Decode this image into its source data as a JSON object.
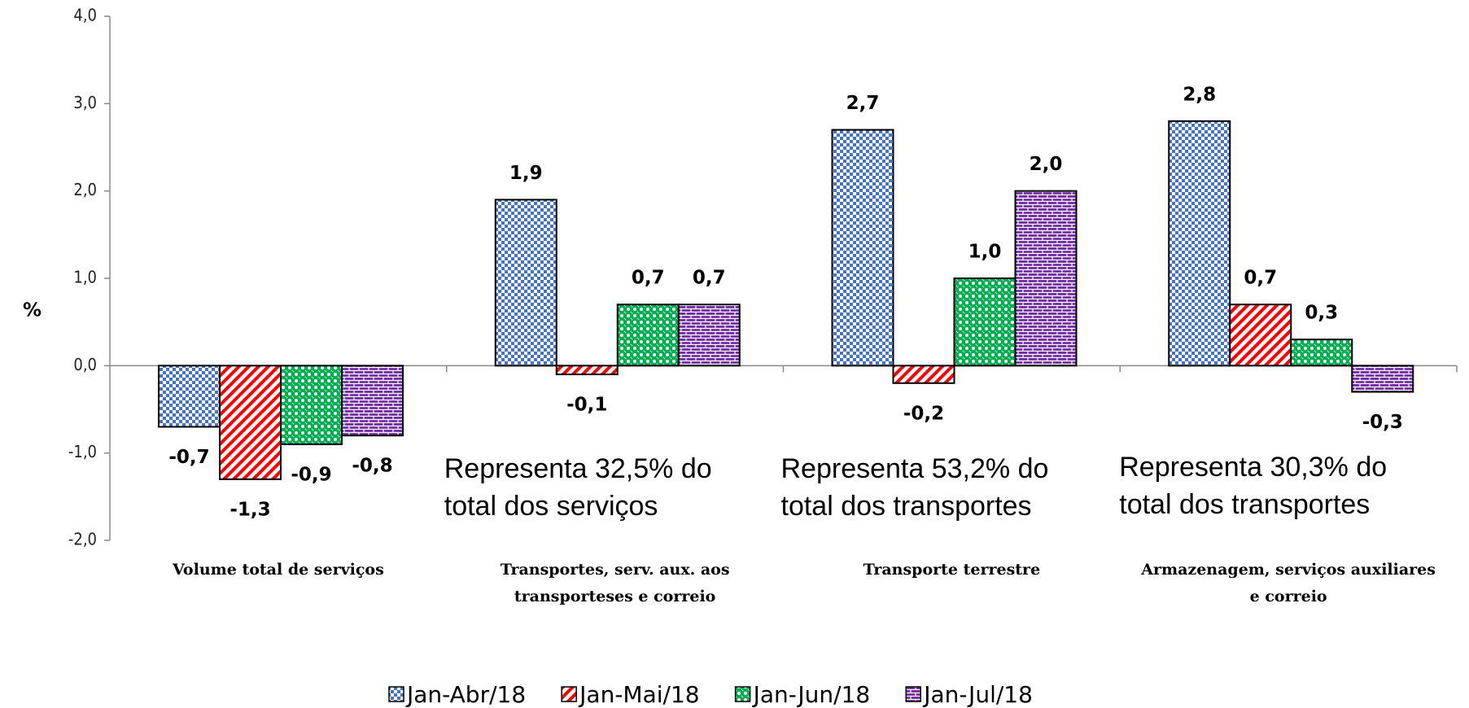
{
  "chart_data": {
    "type": "bar",
    "y_label": "%",
    "categories": [
      "Volume total de serviços",
      "Transportes, serv. aux. aos transporteses e correio",
      "Transporte terrestre",
      "Armazenagem, serviços auxiliares e correio"
    ],
    "series": [
      {
        "name": "Jan-Abr/18",
        "color": "#4472c4",
        "values": [
          -0.7,
          1.9,
          2.7,
          2.8
        ],
        "value_labels": [
          "-0,7",
          "1,9",
          "2,7",
          "2,8"
        ]
      },
      {
        "name": "Jan-Mai/18",
        "color": "#ff0000",
        "values": [
          -1.3,
          -0.1,
          -0.2,
          0.7
        ],
        "value_labels": [
          "-1,3",
          "-0,1",
          "-0,2",
          "0,7"
        ]
      },
      {
        "name": "Jan-Jun/18",
        "color": "#00b050",
        "values": [
          -0.9,
          0.7,
          1.0,
          0.3
        ],
        "value_labels": [
          "-0,9",
          "0,7",
          "1,0",
          "0,3"
        ]
      },
      {
        "name": "Jan-Jul/18",
        "color": "#7030a0",
        "values": [
          -0.8,
          0.7,
          2.0,
          -0.3
        ],
        "value_labels": [
          "-0,8",
          "0,7",
          "2,0",
          "-0,3"
        ]
      }
    ],
    "ylim": [
      -2,
      4
    ],
    "yticks": [
      {
        "value": -2,
        "label": "-2,0"
      },
      {
        "value": -1,
        "label": "-1,0"
      },
      {
        "value": 0,
        "label": "0,0"
      },
      {
        "value": 1,
        "label": "1,0"
      },
      {
        "value": 2,
        "label": "2,0"
      },
      {
        "value": 3,
        "label": "3,0"
      },
      {
        "value": 4,
        "label": "4,0"
      }
    ],
    "annotations": [
      "Representa 32,5% do total dos serviços",
      "Representa 53,2% do total dos transportes",
      "Representa 30,3% do total dos transportes"
    ],
    "legend": "bottom"
  }
}
